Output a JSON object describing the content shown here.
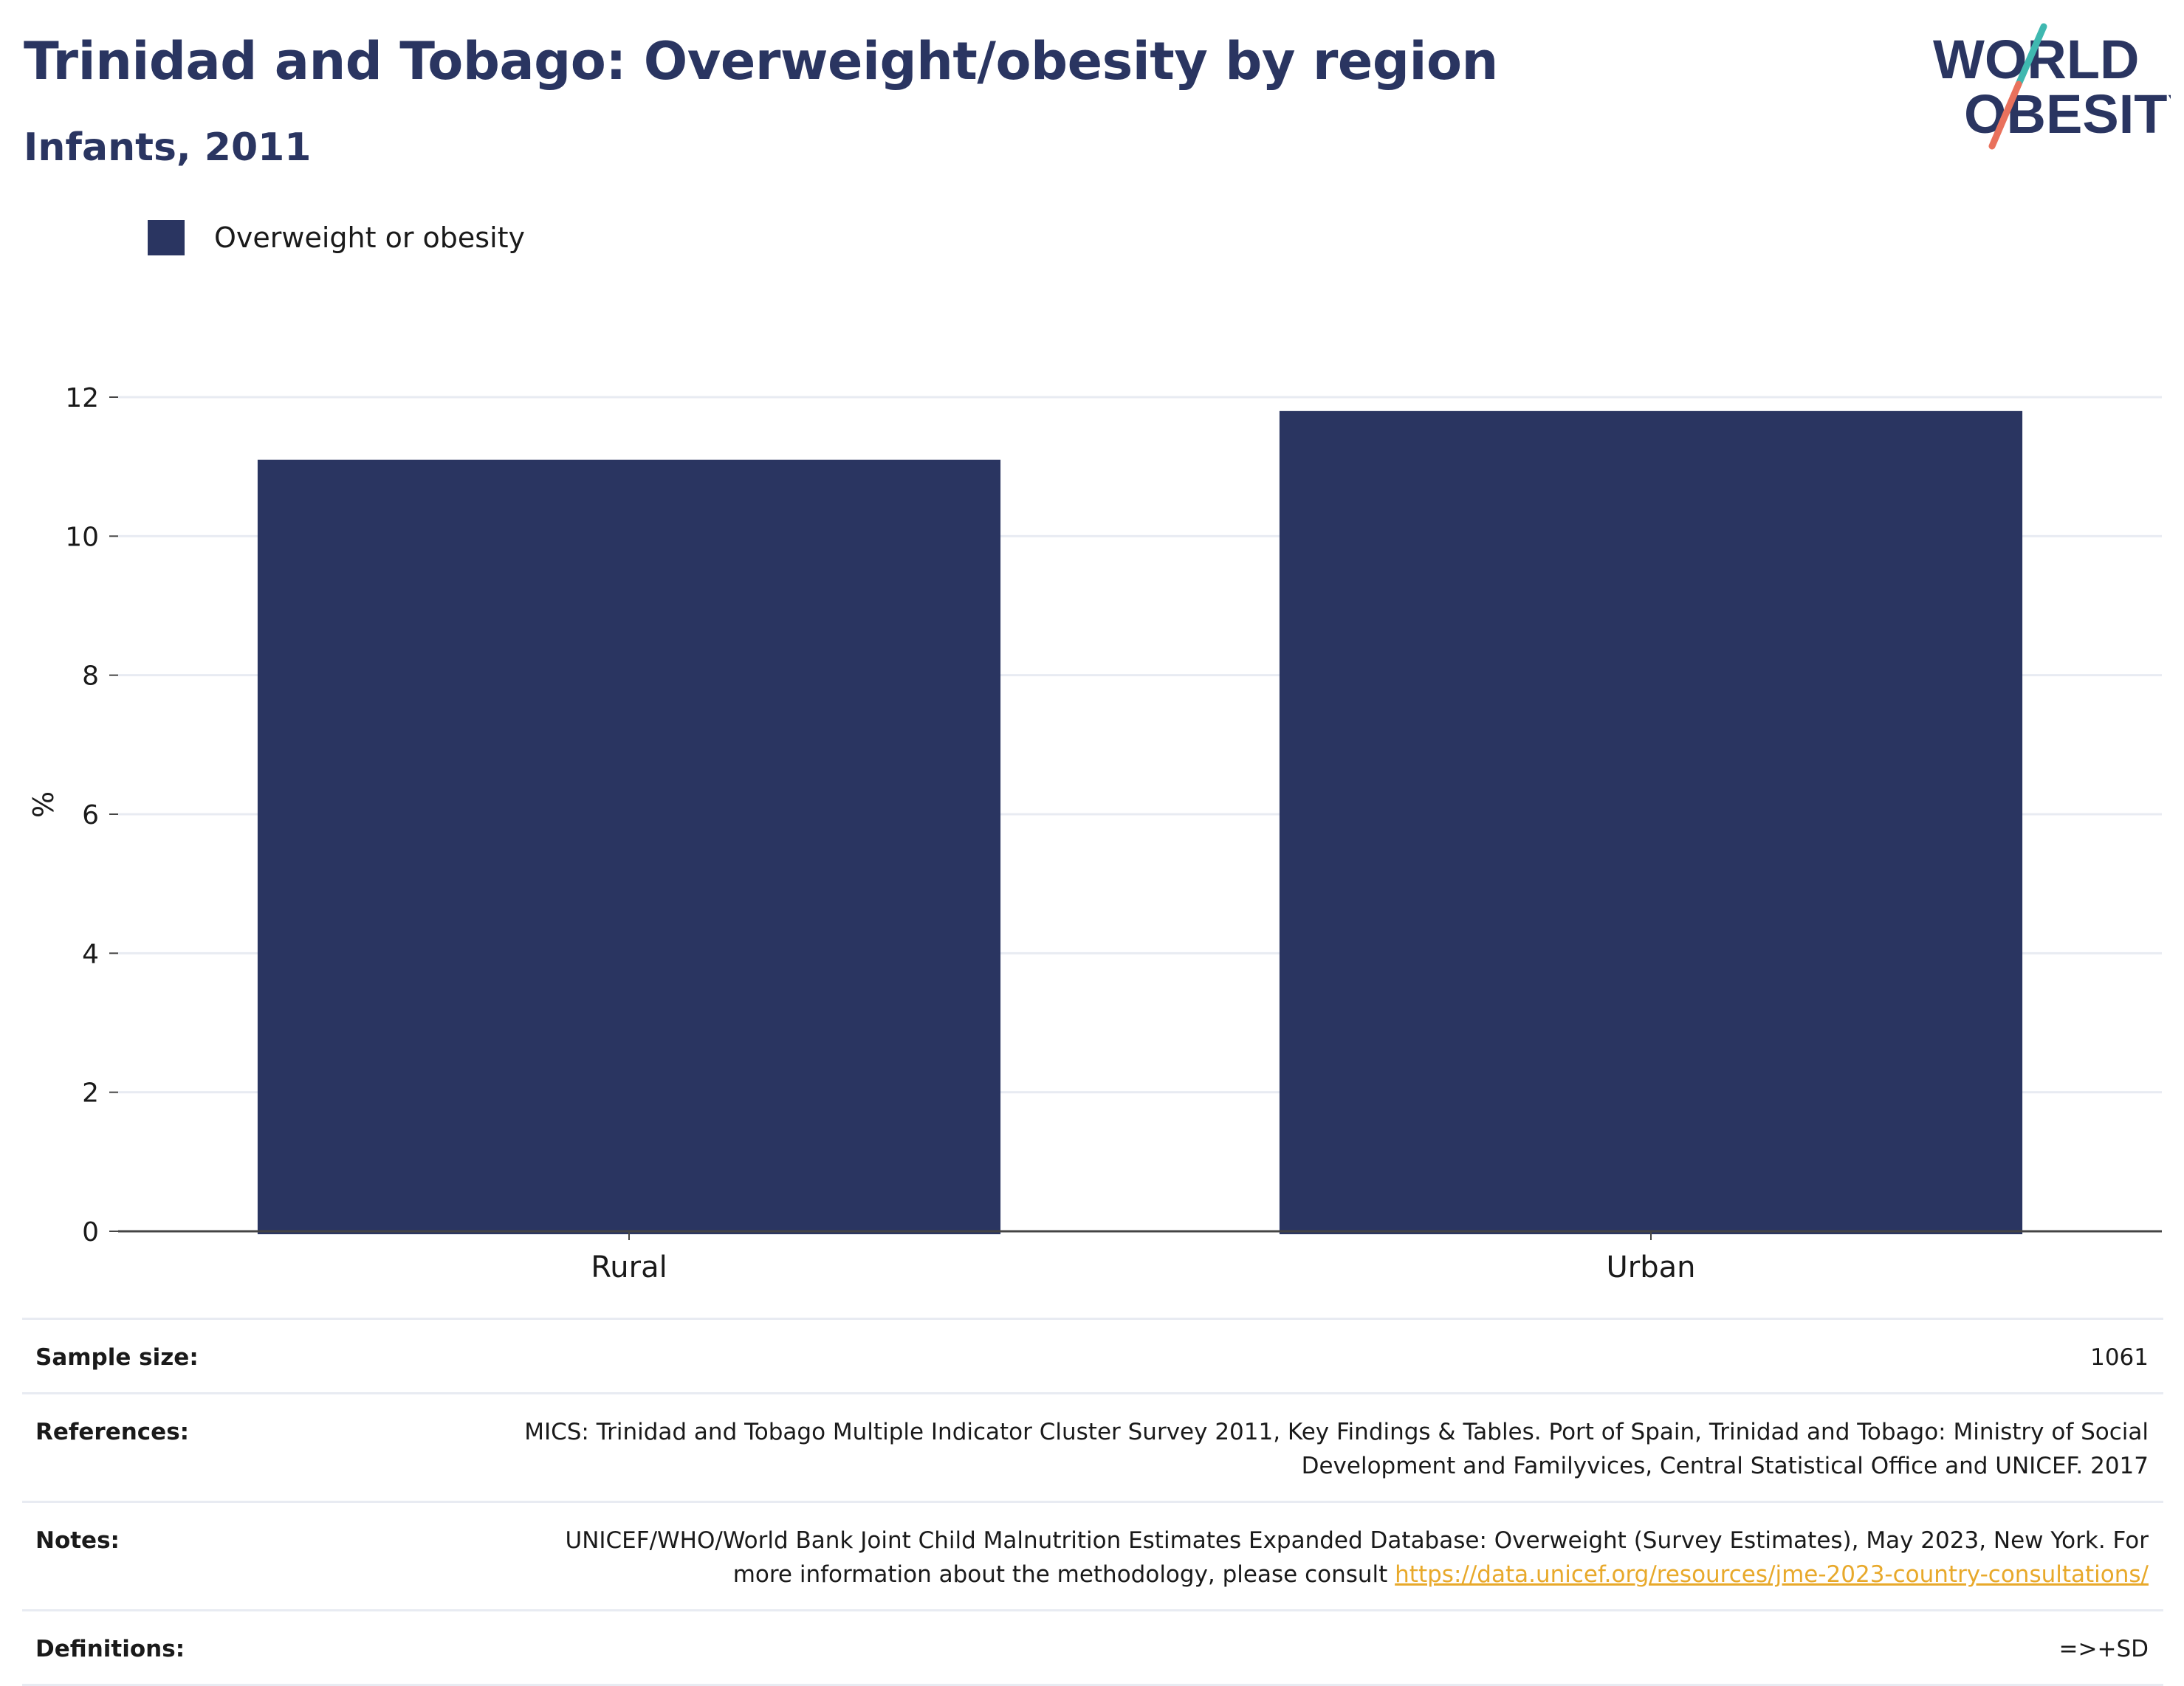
{
  "header": {
    "title": "Trinidad and Tobago: Overweight/obesity by region",
    "subtitle": "Infants, 2011"
  },
  "logo": {
    "line1": "WORLD",
    "line2": "OBESITY",
    "slash_colors": [
      "#3fb8b0",
      "#e9715c"
    ]
  },
  "colors": {
    "bar": "#2a3561",
    "title": "#2a3561",
    "grid": "#e8ebf2",
    "link": "#e8a92b"
  },
  "chart_data": {
    "type": "bar",
    "categories": [
      "Rural",
      "Urban"
    ],
    "series": [
      {
        "name": "Overweight or obesity",
        "values": [
          11.1,
          11.8
        ]
      }
    ],
    "ylabel": "%",
    "ylim": [
      0,
      12
    ],
    "yticks": [
      0,
      2,
      4,
      6,
      8,
      10,
      12
    ],
    "grid": true,
    "legend_position": "top-left"
  },
  "info": {
    "sample_size_label": "Sample size:",
    "sample_size_value": "1061",
    "references_label": "References:",
    "references_value": "MICS: Trinidad and Tobago Multiple Indicator Cluster Survey 2011, Key Findings & Tables. Port of Spain, Trinidad and Tobago: Ministry of Social Development and Familyvices, Central Statistical Office and UNICEF. 2017",
    "notes_label": "Notes:",
    "notes_value": "UNICEF/WHO/World Bank Joint Child Malnutrition Estimates Expanded Database: Overweight (Survey Estimates), May 2023, New York. For more information about the methodology, please consult ",
    "notes_link": "https://data.unicef.org/resources/jme-2023-country-consultations/",
    "definitions_label": "Definitions:",
    "definitions_value": "=>+SD"
  }
}
